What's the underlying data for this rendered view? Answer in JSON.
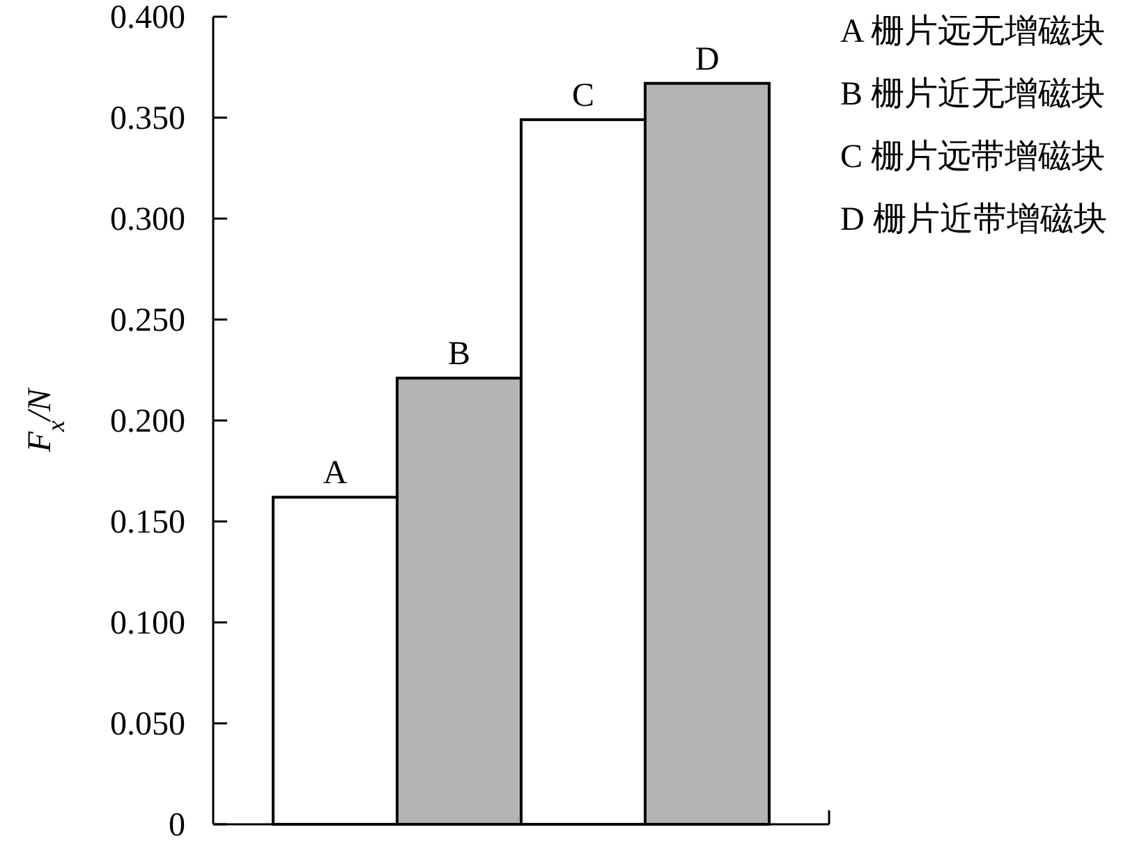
{
  "chart_data": {
    "type": "bar",
    "ylabel": "F$_{x}$/N",
    "categories": [
      "A",
      "B",
      "C",
      "D"
    ],
    "values": [
      0.162,
      0.221,
      0.349,
      0.367
    ],
    "colors": [
      "#ffffff",
      "#b3b3b3",
      "#ffffff",
      "#b3b3b3"
    ],
    "ylim": [
      0,
      0.4
    ],
    "yticks": [
      0,
      {
        "value": 0.05,
        "label": "0.050"
      },
      {
        "value": 0.1,
        "label": "0.100"
      },
      {
        "value": 0.15,
        "label": "0.150"
      },
      {
        "value": 0.2,
        "label": "0.200"
      },
      {
        "value": 0.25,
        "label": "0.250"
      },
      {
        "value": 0.3,
        "label": "0.300"
      },
      {
        "value": 0.35,
        "label": "0.350"
      },
      {
        "value": 0.4,
        "label": "0.400"
      }
    ],
    "annotations": [
      "A 栅片远无增磁块",
      "B 栅片近无增磁块",
      "C 栅片远带增磁块",
      "D 栅片近带增磁块"
    ]
  }
}
